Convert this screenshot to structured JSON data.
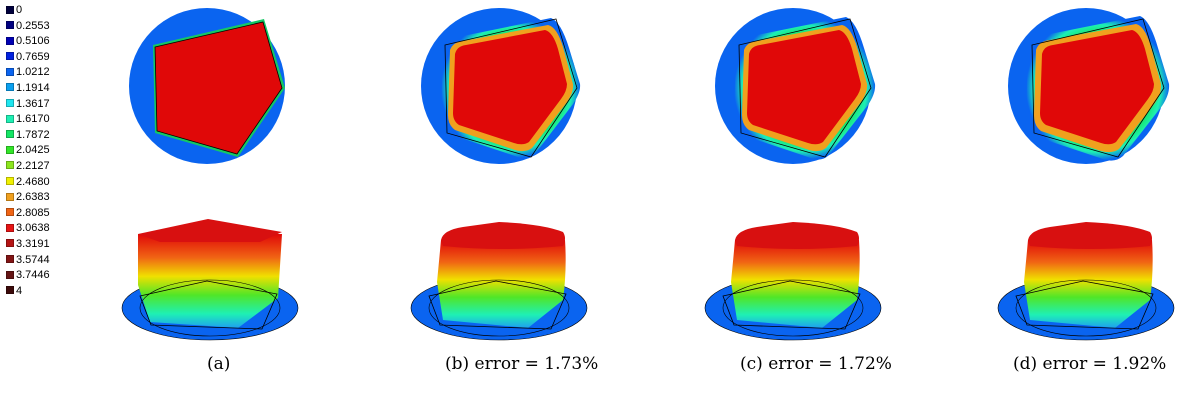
{
  "legend": {
    "items": [
      {
        "value": "0",
        "color": "#00003c"
      },
      {
        "value": "0.2553",
        "color": "#000080"
      },
      {
        "value": "0.5106",
        "color": "#0000b4"
      },
      {
        "value": "0.7659",
        "color": "#0020e0"
      },
      {
        "value": "1.0212",
        "color": "#0a64f0"
      },
      {
        "value": "1.1914",
        "color": "#0aa0f0"
      },
      {
        "value": "1.3617",
        "color": "#1ee6f0"
      },
      {
        "value": "1.6170",
        "color": "#1ef0b4"
      },
      {
        "value": "1.7872",
        "color": "#14e664"
      },
      {
        "value": "2.0425",
        "color": "#32e628"
      },
      {
        "value": "2.2127",
        "color": "#8ce61e"
      },
      {
        "value": "2.4680",
        "color": "#f0f000"
      },
      {
        "value": "2.6383",
        "color": "#f0a01e"
      },
      {
        "value": "2.8085",
        "color": "#f06414"
      },
      {
        "value": "3.0638",
        "color": "#e61414"
      },
      {
        "value": "3.3191",
        "color": "#b41414"
      },
      {
        "value": "3.5744",
        "color": "#821414"
      },
      {
        "value": "3.7446",
        "color": "#641414"
      },
      {
        "value": "4",
        "color": "#3c0a0a"
      }
    ]
  },
  "panels": [
    {
      "caption": "(a)",
      "shape": "sharp"
    },
    {
      "caption": "(b) error = 1.73%",
      "shape": "smooth"
    },
    {
      "caption": "(c) error = 1.72%",
      "shape": "smooth"
    },
    {
      "caption": "(d) error = 1.92%",
      "shape": "smooth"
    }
  ],
  "colors": {
    "background_disc": "#0a64f0",
    "plateau": "#e00808",
    "outline": "#000000"
  }
}
